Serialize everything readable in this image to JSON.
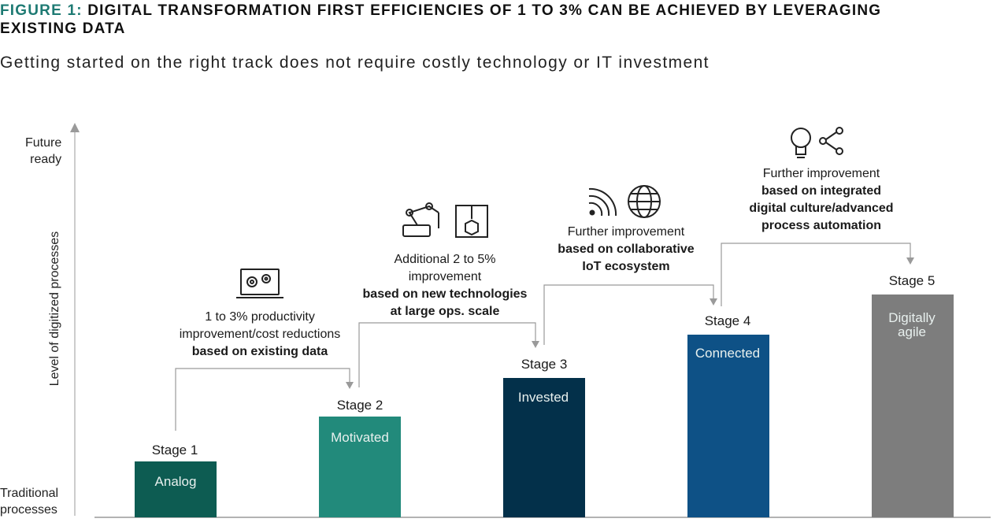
{
  "figure_label": "FIGURE 1:",
  "title": "DIGITAL TRANSFORMATION FIRST EFFICIENCIES OF 1 TO 3% CAN BE ACHIEVED BY LEVERAGING EXISTING DATA",
  "subtitle": "Getting started on the right track does not require costly technology or IT investment",
  "colors": {
    "accent": "#1e7a73",
    "axis": "#9a9a9a",
    "connector": "#9a9a9a"
  },
  "chart_data": {
    "type": "bar",
    "ylabel": "Level of digitized processes",
    "y_top_label": [
      "Future",
      "ready"
    ],
    "y_bottom_label": [
      "Traditional",
      "processes"
    ],
    "categories": [
      "Stage 1",
      "Stage 2",
      "Stage 3",
      "Stage 4",
      "Stage 5"
    ],
    "bar_labels": [
      "Analog",
      "Motivated",
      "Invested",
      "Connected",
      "Digitally agile"
    ],
    "values": [
      1,
      2,
      3,
      4,
      5
    ],
    "ylim": [
      0,
      7
    ],
    "bar_colors": [
      "#0d5c52",
      "#228a7b",
      "#03304a",
      "#0e5186",
      "#7d7d7d"
    ],
    "grid": false,
    "annotations": [
      {
        "icons": [
          "laptop-gears-icon"
        ],
        "plain": [
          "1 to 3% productivity",
          "improvement/cost reductions"
        ],
        "bold": [
          "based on existing data"
        ]
      },
      {
        "icons": [
          "robot-arm-icon",
          "3d-printer-icon"
        ],
        "plain": [
          "Additional 2 to 5%",
          "improvement"
        ],
        "bold": [
          "based on new technologies",
          "at large ops. scale"
        ]
      },
      {
        "icons": [
          "wireless-signal-icon",
          "globe-icon"
        ],
        "plain": [
          "Further improvement"
        ],
        "bold": [
          "based on collaborative",
          "IoT ecosystem"
        ]
      },
      {
        "icons": [
          "lightbulb-icon",
          "share-icon"
        ],
        "plain": [
          "Further improvement"
        ],
        "bold": [
          "based on integrated",
          "digital culture/advanced",
          "process automation"
        ]
      }
    ]
  }
}
